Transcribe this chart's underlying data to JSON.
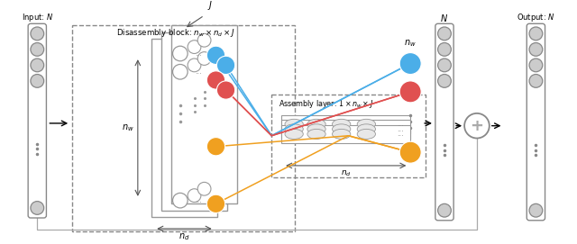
{
  "bg_color": "#f0f4f8",
  "fig_width": 6.4,
  "fig_height": 2.71,
  "dpi": 100,
  "input_label": "Input: $N$",
  "output_label": "Output: $N$",
  "N_label": "$N$",
  "disassembly_label": "Disassembly block: $n_w \\times n_d \\times J$",
  "assembly_label": "Assembly layer: $1 \\times n_w \\times J$",
  "nw_label": "$n_w$",
  "nd_label": "$n_d$",
  "J_label": "$J$",
  "nw2_label": "$n_w$",
  "nd2_label": "$n_d$",
  "blue": "#4baee8",
  "red": "#e05050",
  "orange": "#f0a020",
  "node_gray": "#cccccc",
  "edge_gray": "#888888",
  "panel_edge": "#999999",
  "dashed_edge": "#888888",
  "line_width": 0.9
}
